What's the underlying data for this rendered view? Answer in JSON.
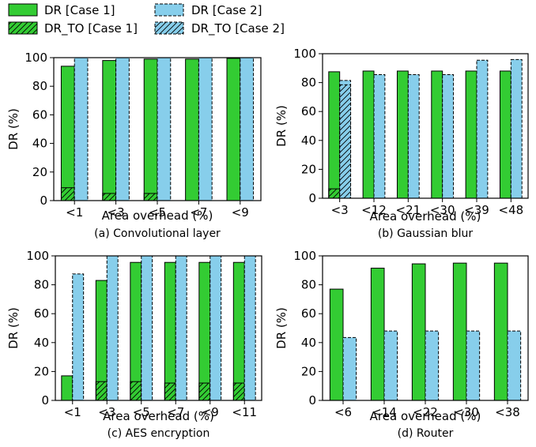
{
  "colors": {
    "case1": "#33cc33",
    "case2": "#87ceeb",
    "edge": "#000000"
  },
  "legend": {
    "items": [
      {
        "label": "DR [Case 1]",
        "series": "dr1"
      },
      {
        "label": "DR_TO [Case 1]",
        "series": "to1"
      },
      {
        "label": "DR [Case 2]",
        "series": "dr2"
      },
      {
        "label": "DR_TO [Case 2]",
        "series": "to2"
      }
    ]
  },
  "chart_data": [
    {
      "type": "bar",
      "caption": "(a) Convolutional layer",
      "xlabel": "Area overhead (%)",
      "ylabel": "DR (%)",
      "ylim": [
        0,
        100
      ],
      "yticks": [
        0,
        20,
        40,
        60,
        80,
        100
      ],
      "categories": [
        "<1",
        "<3",
        "<5",
        "<7",
        "<9"
      ],
      "series": [
        {
          "name": "DR [Case 1]",
          "values": [
            94,
            98,
            99,
            99,
            99.5
          ]
        },
        {
          "name": "DR_TO [Case 1]",
          "values": [
            9,
            5,
            5,
            0,
            0
          ]
        },
        {
          "name": "DR [Case 2]",
          "values": [
            100,
            100,
            100,
            100,
            100
          ]
        },
        {
          "name": "DR_TO [Case 2]",
          "values": [
            0,
            0,
            0,
            0,
            0
          ]
        }
      ]
    },
    {
      "type": "bar",
      "caption": "(b) Gaussian blur",
      "xlabel": "Area overhead (%)",
      "ylabel": "DR (%)",
      "ylim": [
        0,
        100
      ],
      "yticks": [
        0,
        20,
        40,
        60,
        80,
        100
      ],
      "categories": [
        "<3",
        "<12",
        "<21",
        "<30",
        "<39",
        "<48"
      ],
      "series": [
        {
          "name": "DR [Case 1]",
          "values": [
            87.5,
            88,
            88,
            88,
            88,
            88
          ]
        },
        {
          "name": "DR_TO [Case 1]",
          "values": [
            6.5,
            0,
            0,
            0,
            0,
            0
          ]
        },
        {
          "name": "DR [Case 2]",
          "values": [
            81.5,
            85.5,
            85.5,
            85.5,
            95.5,
            96
          ]
        },
        {
          "name": "DR_TO [Case 2]",
          "values": [
            78.5,
            0,
            0,
            0,
            0,
            0
          ]
        }
      ]
    },
    {
      "type": "bar",
      "caption": "(c) AES encryption",
      "xlabel": "Area overhead (%)",
      "ylabel": "DR (%)",
      "ylim": [
        0,
        100
      ],
      "yticks": [
        0,
        20,
        40,
        60,
        80,
        100
      ],
      "categories": [
        "<1",
        "<3",
        "<5",
        "<7",
        "<9",
        "<11"
      ],
      "series": [
        {
          "name": "DR [Case 1]",
          "values": [
            17,
            83,
            95.5,
            95.5,
            95.5,
            95.5
          ]
        },
        {
          "name": "DR_TO [Case 1]",
          "values": [
            0,
            13,
            13,
            12,
            12,
            12
          ]
        },
        {
          "name": "DR [Case 2]",
          "values": [
            87.5,
            100,
            100,
            100,
            100,
            100
          ]
        },
        {
          "name": "DR_TO [Case 2]",
          "values": [
            0,
            0,
            0,
            0,
            0,
            0
          ]
        }
      ]
    },
    {
      "type": "bar",
      "caption": "(d) Router",
      "xlabel": "Area overhead (%)",
      "ylabel": "DR (%)",
      "ylim": [
        0,
        100
      ],
      "yticks": [
        0,
        20,
        40,
        60,
        80,
        100
      ],
      "categories": [
        "<6",
        "<14",
        "<22",
        "<30",
        "<38"
      ],
      "series": [
        {
          "name": "DR [Case 1]",
          "values": [
            77,
            91.5,
            94.5,
            95,
            95
          ]
        },
        {
          "name": "DR_TO [Case 1]",
          "values": [
            0,
            0,
            0,
            0,
            0
          ]
        },
        {
          "name": "DR [Case 2]",
          "values": [
            43.5,
            48,
            48,
            48,
            48
          ]
        },
        {
          "name": "DR_TO [Case 2]",
          "values": [
            0,
            0,
            0,
            0,
            0
          ]
        }
      ]
    }
  ]
}
